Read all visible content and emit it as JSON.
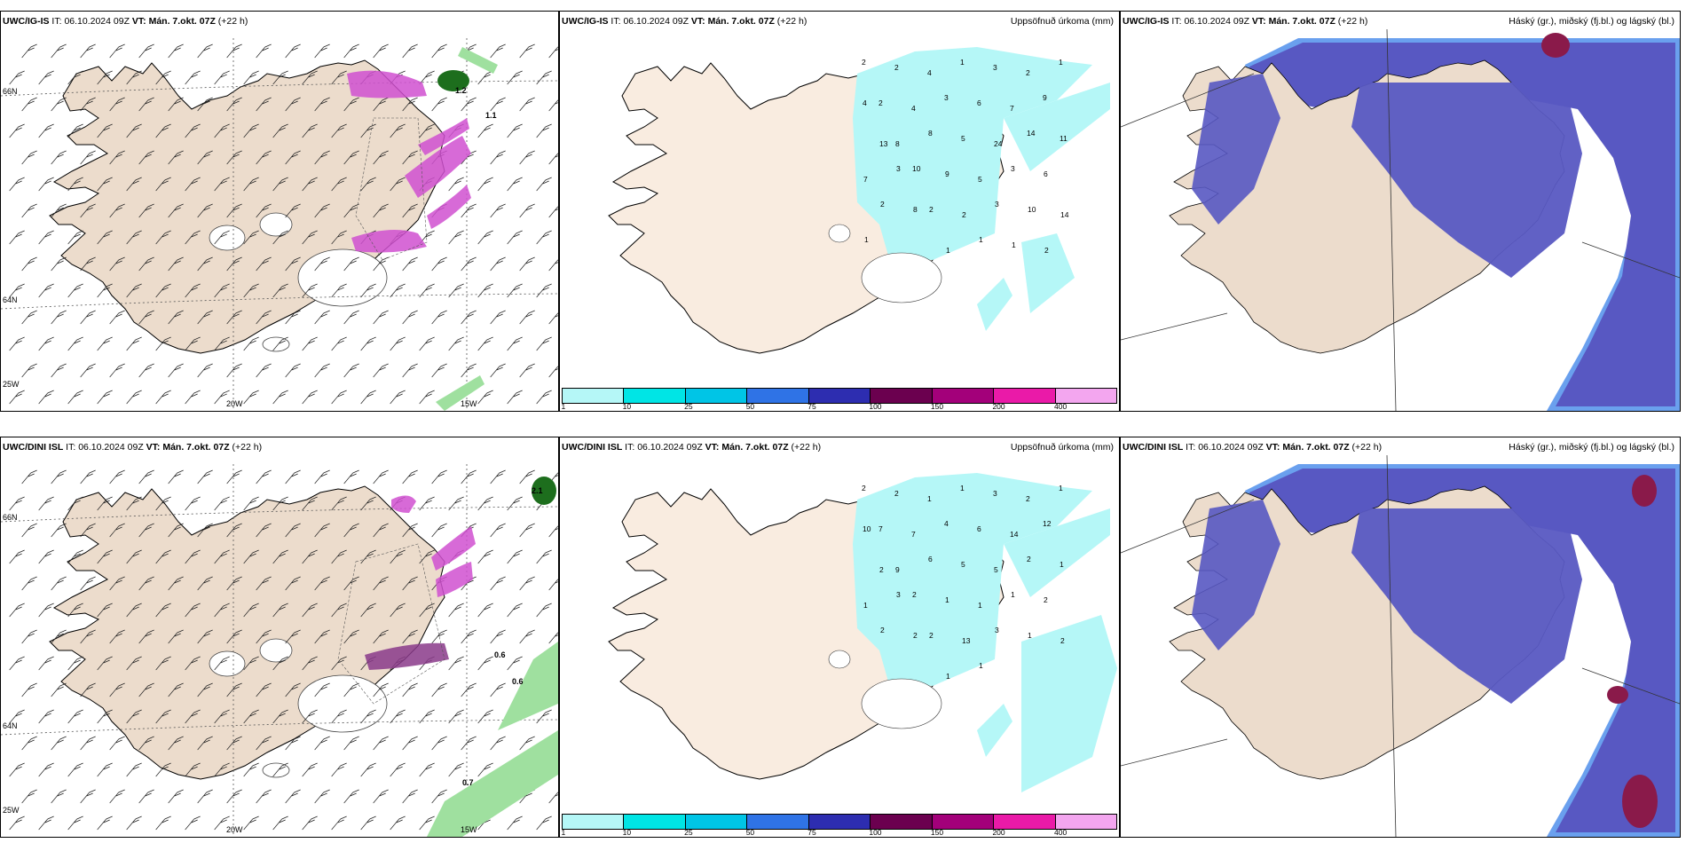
{
  "panels": [
    {
      "id": "p1",
      "model": "UWC/IG-IS",
      "it_label": "IT:",
      "it": "06.10.2024 09Z",
      "vt_label": "VT:",
      "vt": "Mán. 7.okt. 07Z",
      "lead": "(+22 h)",
      "right_title": "",
      "type": "wind"
    },
    {
      "id": "p2",
      "model": "UWC/IG-IS",
      "it_label": "IT:",
      "it": "06.10.2024 09Z",
      "vt_label": "VT:",
      "vt": "Mán. 7.okt. 07Z",
      "lead": "(+22 h)",
      "right_title": "Uppsöfnuð úrkoma (mm)",
      "type": "precip"
    },
    {
      "id": "p3",
      "model": "UWC/IG-IS",
      "it_label": "IT:",
      "it": "06.10.2024 09Z",
      "vt_label": "VT:",
      "vt": "Mán. 7.okt. 07Z",
      "lead": "(+22 h)",
      "right_title": "Háský (gr.), miðský (fj.bl.) og lágský (bl.)",
      "type": "cloud"
    },
    {
      "id": "p4",
      "model": "UWC/DINI ISL",
      "it_label": "IT:",
      "it": "06.10.2024 09Z",
      "vt_label": "VT:",
      "vt": "Mán. 7.okt. 07Z",
      "lead": "(+22 h)",
      "right_title": "",
      "type": "wind"
    },
    {
      "id": "p5",
      "model": "UWC/DINI ISL",
      "it_label": "IT:",
      "it": "06.10.2024 09Z",
      "vt_label": "VT:",
      "vt": "Mán. 7.okt. 07Z",
      "lead": "(+22 h)",
      "right_title": "Uppsöfnuð úrkoma (mm)",
      "type": "precip"
    },
    {
      "id": "p6",
      "model": "UWC/DINI ISL",
      "it_label": "IT:",
      "it": "06.10.2024 09Z",
      "vt_label": "VT:",
      "vt": "Mán. 7.okt. 07Z",
      "lead": "(+22 h)",
      "right_title": "Háský (gr.), miðský (fj.bl.) og lágský (bl.)",
      "type": "cloud"
    }
  ],
  "grid_labels": {
    "lon_20w": "20W",
    "lon_15w": "15W",
    "lat_66n": "66N",
    "lat_64n": "64N",
    "lat_25w": "25W"
  },
  "colorbar": {
    "ticks": [
      "1",
      "10",
      "25",
      "50",
      "75",
      "100",
      "150",
      "200",
      "400"
    ],
    "colors": [
      "#b5f7f7",
      "#00e5e5",
      "#00c5e6",
      "#2f73e6",
      "#2d2db0",
      "#6b004f",
      "#a3007a",
      "#ea1aa8",
      "#f3a6ef"
    ]
  },
  "colors": {
    "land": "#ecdccc",
    "precip_land": "#f9ece0",
    "light_cyan": "#b5f7f7",
    "cloud_blue": "#5858c2",
    "cloud_dark": "#8a1a4a",
    "magenta": "#d050d0",
    "green": "#9fe09f"
  },
  "precip_values_top": [
    "2",
    "2",
    "4",
    "1",
    "3",
    "2",
    "1",
    "2",
    "4",
    "3",
    "6",
    "7",
    "9",
    "4",
    "8",
    "8",
    "5",
    "24",
    "14",
    "11",
    "13",
    "10",
    "9",
    "5",
    "3",
    "6",
    "7",
    "3",
    "2",
    "2",
    "3",
    "10",
    "14",
    "2",
    "8",
    "1",
    "1",
    "1",
    "2",
    "1"
  ],
  "precip_values_bottom": [
    "2",
    "2",
    "1",
    "1",
    "3",
    "2",
    "1",
    "7",
    "7",
    "4",
    "6",
    "14",
    "12",
    "10",
    "9",
    "6",
    "5",
    "5",
    "2",
    "1",
    "2",
    "2",
    "1",
    "1",
    "1",
    "2",
    "1",
    "3",
    "2",
    "13",
    "3",
    "1",
    "2",
    "2",
    "2",
    "1",
    "1"
  ],
  "wind_labels_top": [
    "1.1",
    "1.2"
  ],
  "wind_labels_bottom": [
    "2.1",
    "0.6",
    "0.6",
    "0.7"
  ]
}
